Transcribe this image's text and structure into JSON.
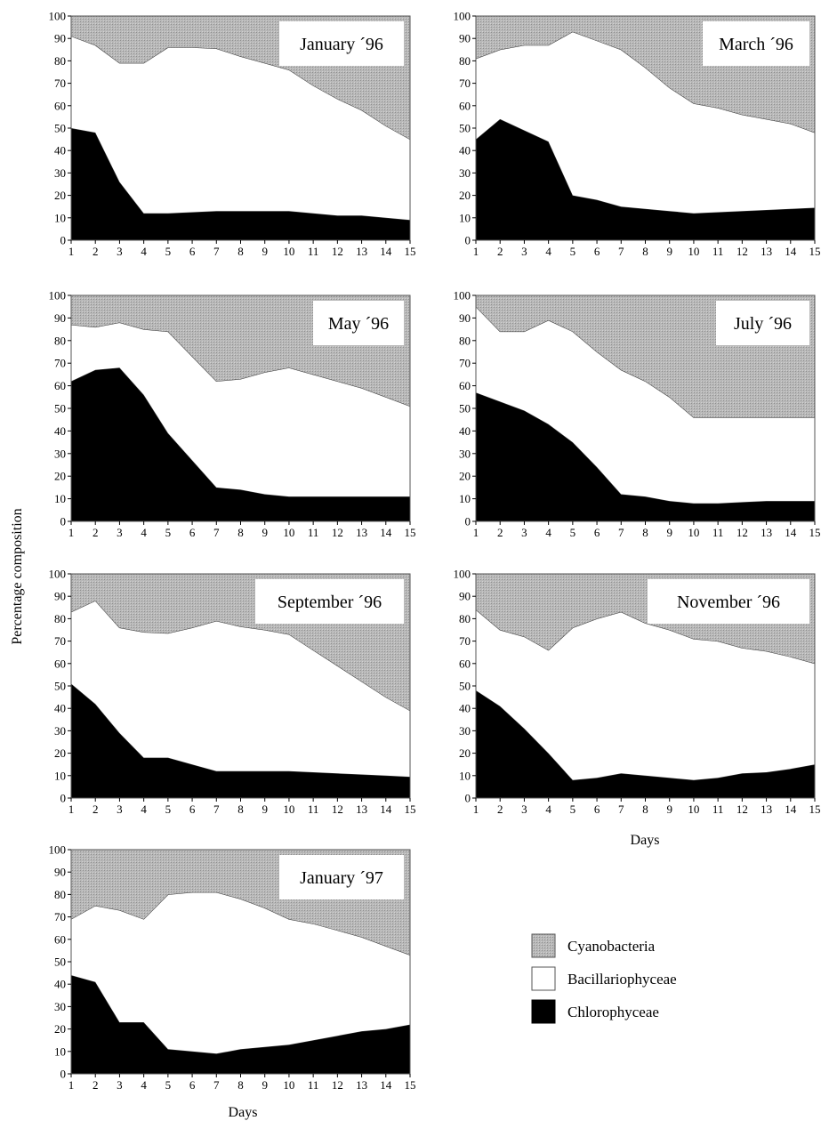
{
  "figure": {
    "ylabel": "Percentage composition",
    "xlabel": "Days"
  },
  "legend": [
    {
      "name": "Cyanobacteria",
      "color": "#b3b3b3"
    },
    {
      "name": "Bacillariophyceae",
      "color": "#ffffff"
    },
    {
      "name": "Chlorophyceae",
      "color": "#000000"
    }
  ],
  "chart_data": [
    {
      "type": "area",
      "title": "January ´96",
      "x": [
        1,
        2,
        3,
        4,
        5,
        6,
        7,
        8,
        9,
        10,
        11,
        12,
        13,
        14,
        15
      ],
      "ylim": [
        0,
        100
      ],
      "xlabel": "",
      "ylabel": "",
      "series": [
        {
          "name": "Chlorophyceae",
          "values": [
            50,
            48,
            26,
            12,
            12,
            12.5,
            13,
            13,
            13,
            13,
            12,
            11,
            11,
            10,
            9
          ]
        },
        {
          "name": "Bacillariophyceae",
          "values": [
            41,
            39,
            53,
            67,
            74,
            73.5,
            72.5,
            69,
            66,
            63,
            57,
            52,
            47,
            41,
            36
          ]
        },
        {
          "name": "Cyanobacteria",
          "values": [
            9,
            13,
            21,
            21,
            14,
            14,
            14.5,
            18,
            21,
            24,
            31,
            37,
            42,
            49,
            55
          ]
        }
      ]
    },
    {
      "type": "area",
      "title": "March ´96",
      "x": [
        1,
        2,
        3,
        4,
        5,
        6,
        7,
        8,
        9,
        10,
        11,
        12,
        13,
        14,
        15
      ],
      "ylim": [
        0,
        100
      ],
      "xlabel": "",
      "ylabel": "",
      "series": [
        {
          "name": "Chlorophyceae",
          "values": [
            45,
            54,
            49,
            44,
            20,
            18,
            15,
            14,
            13,
            12,
            12.5,
            13,
            13.5,
            14,
            14.5
          ]
        },
        {
          "name": "Bacillariophyceae",
          "values": [
            36,
            31,
            38,
            43,
            73,
            71,
            70,
            63,
            55,
            49,
            46.5,
            43,
            40.5,
            38,
            33.5
          ]
        },
        {
          "name": "Cyanobacteria",
          "values": [
            19,
            15,
            13,
            13,
            7,
            11,
            15,
            23,
            32,
            39,
            41,
            44,
            46,
            48,
            52
          ]
        }
      ]
    },
    {
      "type": "area",
      "title": "May ´96",
      "x": [
        1,
        2,
        3,
        4,
        5,
        6,
        7,
        8,
        9,
        10,
        11,
        12,
        13,
        14,
        15
      ],
      "ylim": [
        0,
        100
      ],
      "xlabel": "",
      "ylabel": "",
      "series": [
        {
          "name": "Chlorophyceae",
          "values": [
            62,
            67,
            68,
            56,
            39,
            27,
            15,
            14,
            12,
            11,
            11,
            11,
            11,
            11,
            11
          ]
        },
        {
          "name": "Bacillariophyceae",
          "values": [
            25,
            19,
            20,
            29,
            45,
            46,
            47,
            49,
            54,
            57,
            54,
            51,
            48,
            44,
            40
          ]
        },
        {
          "name": "Cyanobacteria",
          "values": [
            13,
            14,
            12,
            15,
            16,
            27,
            38,
            37,
            34,
            32,
            35,
            38,
            41,
            45,
            49
          ]
        }
      ]
    },
    {
      "type": "area",
      "title": "July ´96",
      "x": [
        1,
        2,
        3,
        4,
        5,
        6,
        7,
        8,
        9,
        10,
        11,
        12,
        13,
        14,
        15
      ],
      "ylim": [
        0,
        100
      ],
      "xlabel": "",
      "ylabel": "",
      "series": [
        {
          "name": "Chlorophyceae",
          "values": [
            57,
            53,
            49,
            43,
            35,
            24,
            12,
            11,
            9,
            8,
            8,
            8.5,
            9,
            9,
            9
          ]
        },
        {
          "name": "Bacillariophyceae",
          "values": [
            38,
            31,
            35,
            46,
            49,
            51,
            55,
            51,
            46,
            38,
            38,
            37.5,
            37,
            37,
            37
          ]
        },
        {
          "name": "Cyanobacteria",
          "values": [
            5,
            16,
            16,
            11,
            16,
            25,
            33,
            38,
            45,
            54,
            54,
            54,
            54,
            54,
            54
          ]
        }
      ]
    },
    {
      "type": "area",
      "title": "September ´96",
      "x": [
        1,
        2,
        3,
        4,
        5,
        6,
        7,
        8,
        9,
        10,
        11,
        12,
        13,
        14,
        15
      ],
      "ylim": [
        0,
        100
      ],
      "xlabel": "",
      "ylabel": "",
      "series": [
        {
          "name": "Chlorophyceae",
          "values": [
            51,
            42,
            29,
            18,
            18,
            15,
            12,
            12,
            12,
            12,
            11.5,
            11,
            10.5,
            10,
            9.5
          ]
        },
        {
          "name": "Bacillariophyceae",
          "values": [
            32,
            46,
            47,
            56,
            55.5,
            61,
            67,
            64.5,
            63,
            61,
            54.5,
            48,
            41.5,
            35,
            29.5
          ]
        },
        {
          "name": "Cyanobacteria",
          "values": [
            17,
            12,
            24,
            26,
            26.5,
            24,
            21,
            23.5,
            25,
            27,
            34,
            41,
            48,
            55,
            61
          ]
        }
      ]
    },
    {
      "type": "area",
      "title": "November ´96",
      "x": [
        1,
        2,
        3,
        4,
        5,
        6,
        7,
        8,
        9,
        10,
        11,
        12,
        13,
        14,
        15
      ],
      "ylim": [
        0,
        100
      ],
      "xlabel": "",
      "ylabel": "",
      "series": [
        {
          "name": "Chlorophyceae",
          "values": [
            48,
            41,
            31,
            20,
            8,
            9,
            11,
            10,
            9,
            8,
            9,
            11,
            11.5,
            13,
            15
          ]
        },
        {
          "name": "Bacillariophyceae",
          "values": [
            36,
            34,
            41,
            46,
            68,
            71,
            72,
            68,
            66,
            63,
            61,
            56,
            54,
            50,
            45
          ]
        },
        {
          "name": "Cyanobacteria",
          "values": [
            16,
            25,
            28,
            34,
            24,
            20,
            17,
            22,
            25,
            29,
            30,
            33,
            34.5,
            37,
            40
          ]
        }
      ]
    },
    {
      "type": "area",
      "title": "January ´97",
      "x": [
        1,
        2,
        3,
        4,
        5,
        6,
        7,
        8,
        9,
        10,
        11,
        12,
        13,
        14,
        15
      ],
      "ylim": [
        0,
        100
      ],
      "xlabel": "",
      "ylabel": "",
      "series": [
        {
          "name": "Chlorophyceae",
          "values": [
            44,
            41,
            23,
            23,
            11,
            10,
            9,
            11,
            12,
            13,
            15,
            17,
            19,
            20,
            22
          ]
        },
        {
          "name": "Bacillariophyceae",
          "values": [
            25,
            34,
            50,
            46,
            69,
            71,
            72,
            67,
            62,
            56,
            52,
            47,
            42,
            37,
            31
          ]
        },
        {
          "name": "Cyanobacteria",
          "values": [
            31,
            25,
            27,
            31,
            20,
            19,
            19,
            22,
            26,
            31,
            33,
            36,
            39,
            43,
            47
          ]
        }
      ]
    }
  ]
}
